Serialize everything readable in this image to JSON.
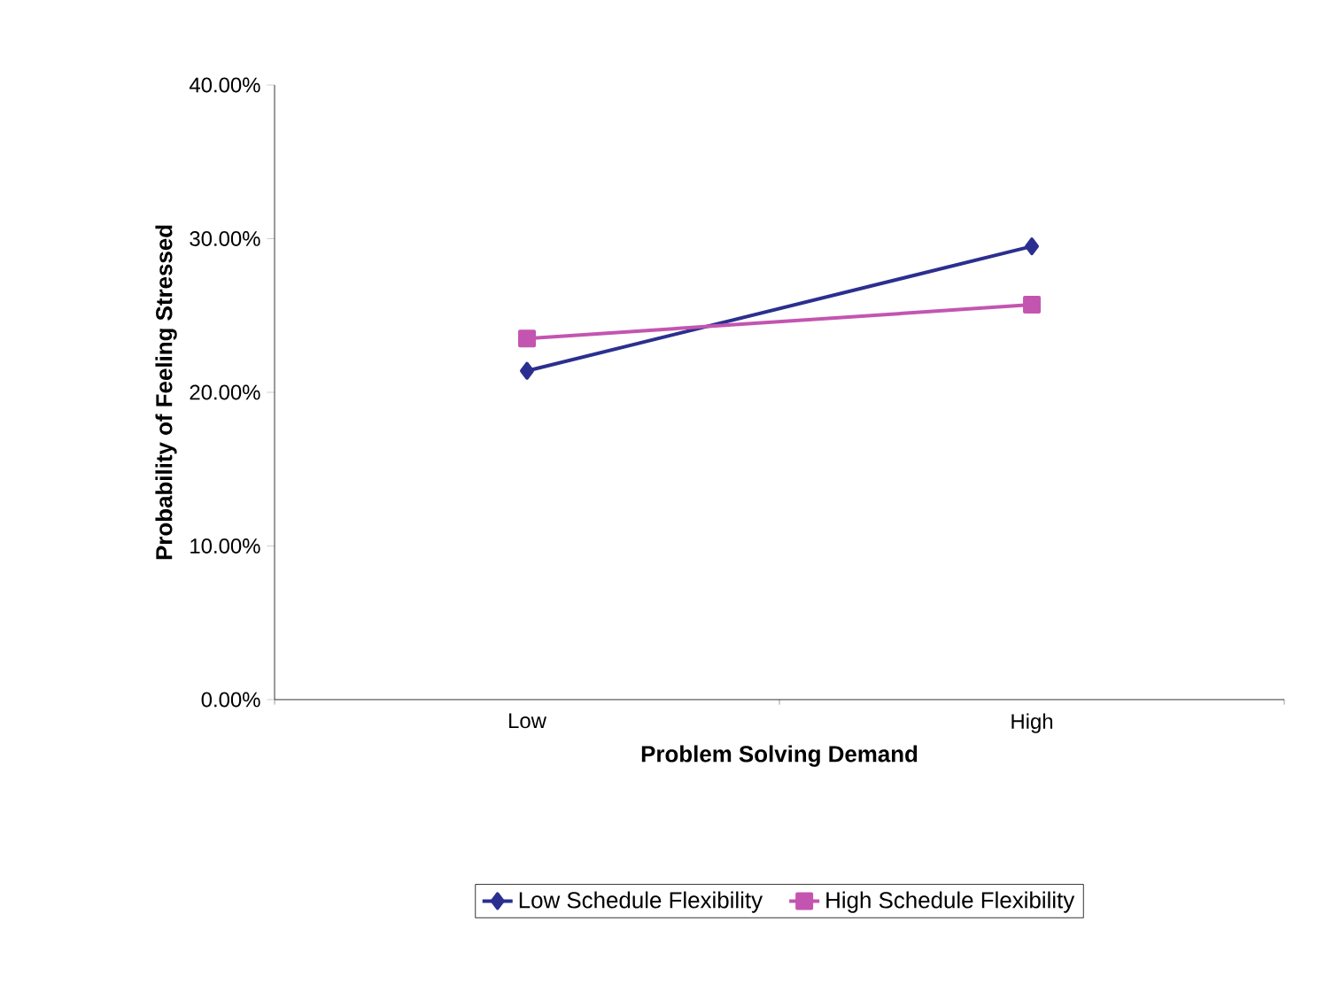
{
  "chart_data": {
    "type": "line",
    "xlabel": "Problem Solving Demand",
    "ylabel": "Probability of Feeling Stressed",
    "categories": [
      "Low",
      "High"
    ],
    "series": [
      {
        "name": "Low Schedule Flexibility",
        "color": "#2b2f8f",
        "marker": "diamond",
        "values": [
          21.4,
          29.5
        ]
      },
      {
        "name": "High Schedule Flexibility",
        "color": "#c355b0",
        "marker": "square",
        "values": [
          23.5,
          25.7
        ]
      }
    ],
    "ylim": [
      0,
      40
    ],
    "yticks": [
      {
        "value": 0,
        "label": "0.00%"
      },
      {
        "value": 10,
        "label": "10.00%"
      },
      {
        "value": 20,
        "label": "20.00%"
      },
      {
        "value": 30,
        "label": "30.00%"
      },
      {
        "value": 40,
        "label": "40.00%"
      }
    ],
    "grid": false,
    "legend": "bottom"
  }
}
